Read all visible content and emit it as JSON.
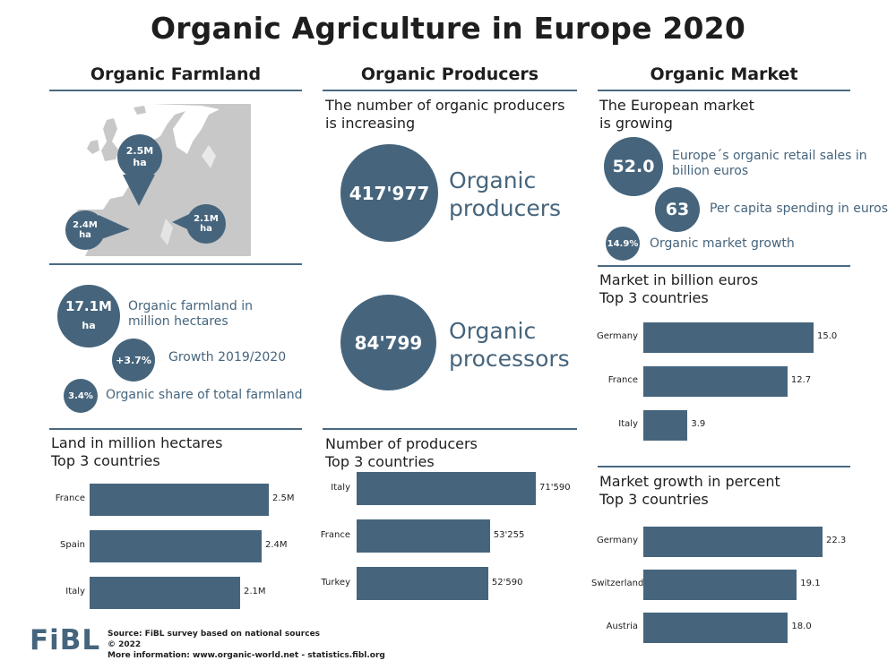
{
  "title": "Organic Agriculture in Europe 2020",
  "columns": {
    "farmland": "Organic Farmland",
    "producers": "Organic Producers",
    "market": "Organic Market"
  },
  "farmland": {
    "map_pins": [
      {
        "value": "2.5M",
        "unit": "ha"
      },
      {
        "value": "2.4M",
        "unit": "ha"
      },
      {
        "value": "2.1M",
        "unit": "ha"
      }
    ],
    "stats": [
      {
        "circle_value": "17.1M",
        "circle_unit": "ha",
        "label_line1": "Organic farmland in",
        "label_line2": "million hectares"
      },
      {
        "circle_value": "+3.7%",
        "label": "Growth 2019/2020"
      },
      {
        "circle_value": "3.4%",
        "label": "Organic share of total farmland"
      }
    ],
    "chart_heading_line1": "Land in million hectares",
    "chart_heading_line2": "Top 3 countries"
  },
  "producers": {
    "heading_line1": "The number of organic producers",
    "heading_line2": "is increasing",
    "big_stats": [
      {
        "value": "417'977",
        "label_line1": "Organic",
        "label_line2": "producers"
      },
      {
        "value": "84'799",
        "label_line1": "Organic",
        "label_line2": "processors"
      }
    ],
    "chart_heading_line1": "Number of producers",
    "chart_heading_line2": "Top 3 countries"
  },
  "market": {
    "heading_line1": "The European market",
    "heading_line2": "is growing",
    "stats": [
      {
        "circle_value": "52.0",
        "label_line1": "Europe´s organic retail sales in",
        "label_line2": "billion euros"
      },
      {
        "circle_value": "63",
        "label": "Per capita spending in euros"
      },
      {
        "circle_value": "14.9%",
        "label": "Organic market growth"
      }
    ],
    "chart1_heading_line1": "Market in billion euros",
    "chart1_heading_line2": "Top 3 countries",
    "chart2_heading_line1": "Market growth in percent",
    "chart2_heading_line2": "Top 3 countries"
  },
  "footer": {
    "logo": "FiBL",
    "line1": "Source: FiBL survey based on national sources",
    "line2": "© 2022",
    "line3": "More information: www.organic-world.net - statistics.fibl.org"
  },
  "colors": {
    "accent": "#46657d",
    "map": "#c8c8c8"
  },
  "chart_data": [
    {
      "type": "bar",
      "orientation": "horizontal",
      "title": "Land in million hectares",
      "subtitle": "Top 3 countries",
      "categories": [
        "France",
        "Spain",
        "Italy"
      ],
      "values": [
        2.5,
        2.4,
        2.1
      ],
      "value_labels": [
        "2.5M",
        "2.4M",
        "2.1M"
      ]
    },
    {
      "type": "bar",
      "orientation": "horizontal",
      "title": "Number of producers",
      "subtitle": "Top 3 countries",
      "categories": [
        "Italy",
        "France",
        "Turkey"
      ],
      "values": [
        71590,
        53255,
        52590
      ],
      "value_labels": [
        "71'590",
        "53'255",
        "52'590"
      ]
    },
    {
      "type": "bar",
      "orientation": "horizontal",
      "title": "Market in billion euros",
      "subtitle": "Top 3 countries",
      "categories": [
        "Germany",
        "France",
        "Italy"
      ],
      "values": [
        15.0,
        12.7,
        3.9
      ],
      "value_labels": [
        "15.0",
        "12.7",
        "3.9"
      ]
    },
    {
      "type": "bar",
      "orientation": "horizontal",
      "title": "Market growth in percent",
      "subtitle": "Top 3 countries",
      "categories": [
        "Germany",
        "Switzerland",
        "Austria"
      ],
      "values": [
        22.3,
        19.1,
        18.0
      ],
      "value_labels": [
        "22.3",
        "19.1",
        "18.0"
      ]
    }
  ]
}
